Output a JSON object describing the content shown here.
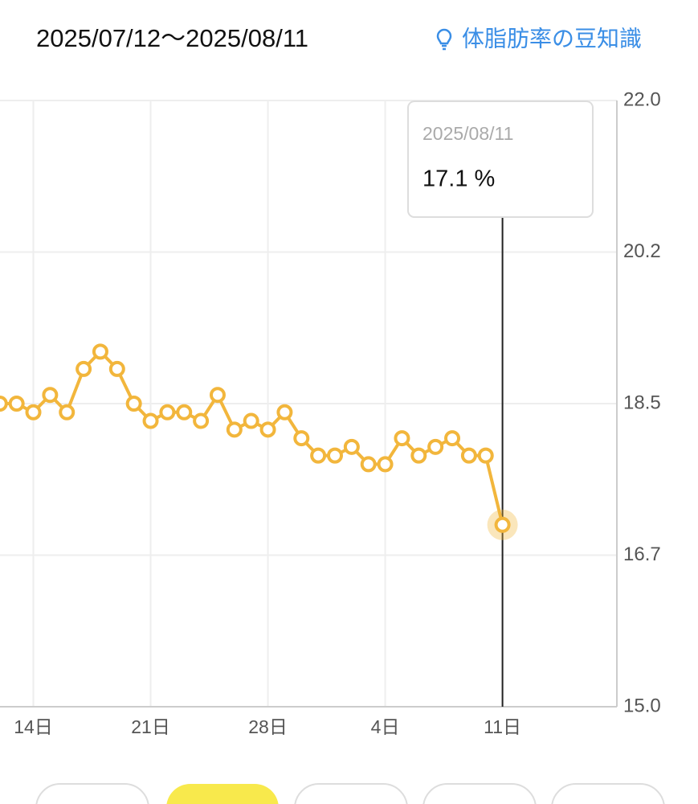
{
  "header": {
    "range": "2025/07/12〜2025/08/11",
    "link": "体脂肪率の豆知識"
  },
  "chart_data": {
    "type": "line",
    "categories": [
      null,
      null,
      "14日",
      null,
      null,
      null,
      null,
      null,
      null,
      "21日",
      null,
      null,
      null,
      null,
      null,
      null,
      "28日",
      null,
      null,
      null,
      null,
      null,
      null,
      "4日",
      null,
      null,
      null,
      null,
      null,
      null,
      "11日"
    ],
    "series": [
      {
        "name": "体脂肪率",
        "color": "#f2b63c",
        "values": [
          18.5,
          18.5,
          18.4,
          18.6,
          18.4,
          18.9,
          19.1,
          18.9,
          18.5,
          18.3,
          18.4,
          18.4,
          18.3,
          18.6,
          18.2,
          18.3,
          18.2,
          18.4,
          18.1,
          17.9,
          17.9,
          18.0,
          17.8,
          17.8,
          18.1,
          17.9,
          18.0,
          18.1,
          17.9,
          17.9,
          17.1
        ]
      }
    ],
    "ylim": [
      15,
      22
    ],
    "yticks": [
      {
        "value": 15,
        "label": "15.0"
      },
      {
        "value": 16.75,
        "label": "16.7"
      },
      18.5,
      {
        "value": 20.25,
        "label": "20.2"
      },
      {
        "value": 22,
        "label": "22.0"
      }
    ],
    "grid": true,
    "tooltip": {
      "date": "2025/08/11",
      "text": "17.1 %"
    }
  }
}
